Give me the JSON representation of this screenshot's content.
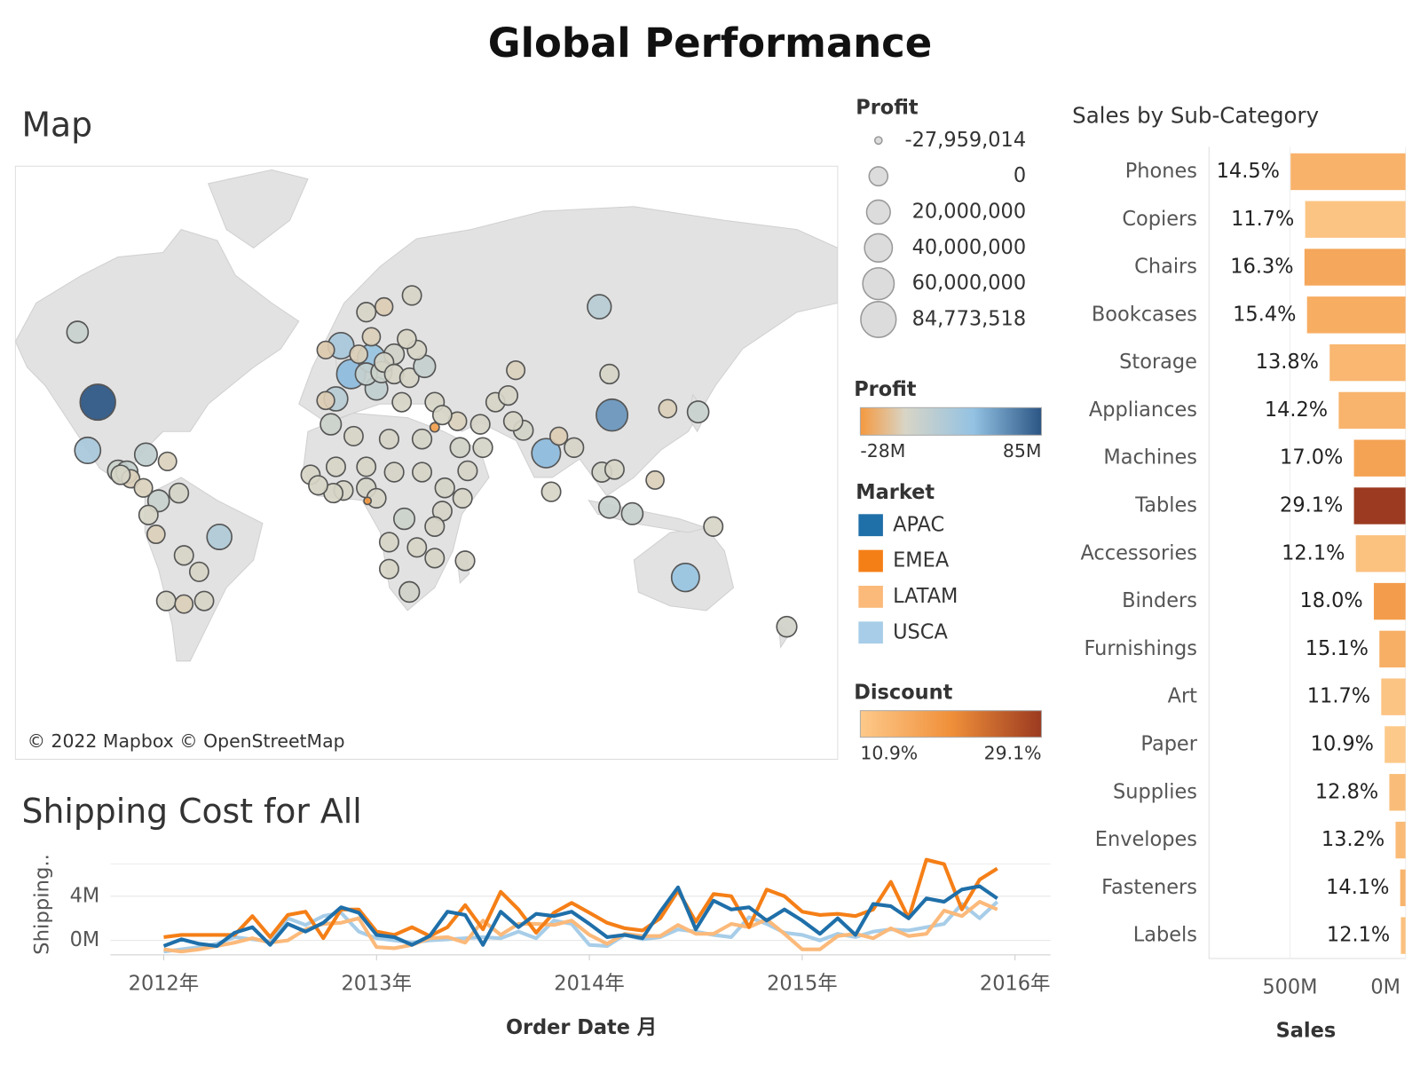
{
  "title": "Global Performance",
  "chart_data": [
    {
      "type": "map",
      "title": "Map",
      "attribution": "© 2022 Mapbox © OpenStreetMap",
      "lon": [
        -98,
        -106,
        -102,
        -90,
        -86.5,
        -85,
        -79,
        -70.5,
        -66,
        -74,
        -78,
        -75,
        -64,
        -50,
        -58,
        -71,
        -64,
        -56,
        -80,
        -89,
        -2,
        2,
        10,
        -4,
        12,
        -8,
        5,
        8,
        14,
        19,
        15,
        8,
        26,
        10,
        15,
        19,
        25,
        31,
        100,
        28,
        24,
        22,
        35,
        -8,
        -6,
        3,
        17,
        30,
        45,
        53,
        44,
        38,
        70,
        66,
        67,
        59,
        64,
        48,
        54,
        -14,
        -4,
        8,
        19,
        30,
        39,
        46,
        38,
        8,
        -1,
        -5,
        12,
        23,
        35,
        17,
        28,
        35,
        17,
        25,
        47,
        -11,
        8.5,
        35,
        105,
        79,
        139,
        127,
        122,
        101,
        106,
        90,
        81,
        104,
        113,
        145,
        134,
        174,
        104,
        84
      ],
      "lat": [
        39,
        57,
        23,
        15.5,
        15,
        12.5,
        21.5,
        19,
        7,
        4,
        -1.5,
        -9,
        -17,
        -10,
        -23,
        -33,
        -34,
        -33,
        9,
        14,
        54,
        47,
        51,
        40,
        43,
        53,
        52,
        47,
        47.5,
        52,
        62,
        61,
        64,
        56,
        50,
        47,
        46,
        49,
        62,
        53,
        55.5,
        39,
        39,
        39.5,
        32,
        28,
        27,
        27,
        24,
        32,
        33,
        35,
        30,
        33,
        48,
        39,
        41,
        15.5,
        24,
        14,
        17,
        17,
        15,
        15,
        9,
        5,
        0,
        9,
        8,
        7,
        5,
        -3,
        -6,
        -12,
        -14,
        -18,
        -22,
        -30,
        -19,
        10,
        4,
        31,
        35,
        22,
        36,
        37,
        12,
        15,
        16,
        24,
        7.5,
        1.5,
        -1,
        -6,
        -25,
        -41,
        47,
        28
      ],
      "profit": [
        84773518,
        10000000,
        30000000,
        8000000,
        12000000,
        -3000000,
        15000000,
        -2000000,
        2000000,
        10000000,
        1000000,
        -3000000,
        1000000,
        25000000,
        500000,
        1000000,
        -3000000,
        500000,
        -2000000,
        1000000,
        30000000,
        45000000,
        40000000,
        20000000,
        15000000,
        -5000000,
        -3000000,
        12000000,
        8000000,
        5000000,
        -4000000,
        1000000,
        1000000,
        -3000000,
        2000000,
        1000000,
        1000000,
        12000000,
        20000000,
        1000000,
        0,
        500000,
        1000000,
        -4000000,
        8000000,
        500000,
        1500000,
        2000000,
        3000000,
        1500000,
        -2000000,
        500000,
        3000000,
        500000,
        -2000000,
        500000,
        1000000,
        1500000,
        2000000,
        500000,
        1000000,
        500000,
        1500000,
        1000000,
        2000000,
        1000000,
        1500000,
        2000000,
        1000000,
        500000,
        1000000,
        8000000,
        1500000,
        1000000,
        500000,
        1000000,
        500000,
        5000000,
        1500000,
        500000,
        -27959014,
        -25000000,
        60000000,
        45000000,
        10000000,
        -3000000,
        -3000000,
        3000000,
        1000000,
        1500000,
        1000000,
        10000000,
        10000000,
        1000000,
        40000000,
        5000000,
        1000000,
        -4000000
      ],
      "size_legend": {
        "title": "Profit",
        "ticks": [
          {
            "value": -27959014,
            "label": "-27,959,014"
          },
          0,
          {
            "value": 20000000,
            "label": "20,000,000"
          },
          {
            "value": 40000000,
            "label": "40,000,000"
          },
          {
            "value": 60000000,
            "label": "60,000,000"
          },
          {
            "value": 84773518,
            "label": "84,773,518"
          }
        ]
      },
      "color_legend": {
        "title": "Profit",
        "ticks": [
          {
            "value": -27959014,
            "label": "-28M"
          },
          {
            "value": 84773518,
            "label": "85M"
          }
        ],
        "colors": [
          "#f5993f",
          "#d8d5c6",
          "#93c2e3",
          "#2b5584"
        ]
      }
    },
    {
      "type": "line",
      "title": "Shipping Cost for All",
      "y_label": "Shipping..",
      "x_label": "Order Date 月",
      "legend_title": "Market",
      "x": [
        "2012-01",
        "2012-02",
        "2012-03",
        "2012-04",
        "2012-05",
        "2012-06",
        "2012-07",
        "2012-08",
        "2012-09",
        "2012-10",
        "2012-11",
        "2012-12",
        "2013-01",
        "2013-02",
        "2013-03",
        "2013-04",
        "2013-05",
        "2013-06",
        "2013-07",
        "2013-08",
        "2013-09",
        "2013-10",
        "2013-11",
        "2013-12",
        "2014-01",
        "2014-02",
        "2014-03",
        "2014-04",
        "2014-05",
        "2014-06",
        "2014-07",
        "2014-08",
        "2014-09",
        "2014-10",
        "2014-11",
        "2014-12",
        "2015-01",
        "2015-02",
        "2015-03",
        "2015-04",
        "2015-05",
        "2015-06",
        "2015-07",
        "2015-08",
        "2015-09",
        "2015-10",
        "2015-11",
        "2015-12"
      ],
      "xlim": [
        "2011-10",
        "2016-03"
      ],
      "xticks": [
        {
          "value": "2012-01",
          "label": "2012年"
        },
        {
          "value": "2013-01",
          "label": "2013年"
        },
        {
          "value": "2014-01",
          "label": "2014年"
        },
        {
          "value": "2015-01",
          "label": "2015年"
        },
        {
          "value": "2016-01",
          "label": "2016年"
        }
      ],
      "ylim": [
        -1300000,
        7000000
      ],
      "yticks": [
        {
          "value": 0,
          "label": "0M"
        },
        {
          "value": 4000000,
          "label": "4M"
        }
      ],
      "grid": true,
      "series": [
        {
          "name": "APAC",
          "color": "#1f6fa9",
          "values": [
            -500000,
            100000,
            -300000,
            -500000,
            700000,
            1200000,
            -400000,
            1500000,
            800000,
            1600000,
            3000000,
            2500000,
            500000,
            300000,
            -400000,
            400000,
            2600000,
            2300000,
            -400000,
            2600000,
            1200000,
            2400000,
            2200000,
            2600000,
            1500000,
            300000,
            500000,
            200000,
            2600000,
            4800000,
            1000000,
            3600000,
            2800000,
            3000000,
            1800000,
            2800000,
            1800000,
            600000,
            2000000,
            500000,
            3300000,
            3100000,
            2000000,
            3800000,
            3500000,
            4600000,
            4900000,
            3800000
          ]
        },
        {
          "name": "EMEA",
          "color": "#f57f17",
          "values": [
            300000,
            500000,
            500000,
            500000,
            500000,
            2200000,
            300000,
            2300000,
            2600000,
            200000,
            2800000,
            2800000,
            800000,
            500000,
            1200000,
            400000,
            1200000,
            3200000,
            1000000,
            4400000,
            2800000,
            700000,
            2500000,
            3400000,
            2500000,
            1600000,
            1100000,
            900000,
            2000000,
            4500000,
            1700000,
            4200000,
            4000000,
            1200000,
            4600000,
            4000000,
            2600000,
            2300000,
            2400000,
            2200000,
            2800000,
            5300000,
            2000000,
            7300000,
            6900000,
            2800000,
            5500000,
            6500000
          ]
        },
        {
          "name": "LATAM",
          "color": "#fbb97a",
          "values": [
            -800000,
            -1000000,
            -800000,
            -500000,
            -200000,
            200000,
            -200000,
            0,
            1000000,
            1500000,
            1600000,
            2000000,
            -600000,
            -700000,
            -400000,
            200000,
            300000,
            -200000,
            1800000,
            500000,
            1500000,
            1500000,
            1400000,
            1800000,
            500000,
            -300000,
            600000,
            400000,
            400000,
            1400000,
            600000,
            600000,
            1500000,
            1200000,
            1900000,
            600000,
            -800000,
            -800000,
            400000,
            600000,
            200000,
            1100000,
            400000,
            600000,
            2700000,
            2200000,
            3500000,
            2800000
          ]
        },
        {
          "name": "USCA",
          "color": "#a7cde8",
          "values": [
            -1000000,
            -800000,
            -600000,
            -300000,
            300000,
            100000,
            -100000,
            2000000,
            1400000,
            2200000,
            2500000,
            800000,
            200000,
            0,
            -200000,
            0,
            100000,
            200000,
            300000,
            200000,
            800000,
            200000,
            1800000,
            1500000,
            -400000,
            -500000,
            500000,
            100000,
            300000,
            1000000,
            800000,
            500000,
            300000,
            2100000,
            1500000,
            700000,
            500000,
            0,
            600000,
            300000,
            800000,
            1000000,
            900000,
            1200000,
            1500000,
            3300000,
            2000000,
            3500000
          ]
        }
      ]
    },
    {
      "type": "bar",
      "orientation": "horizontal",
      "title": "Sales by Sub-Category",
      "x_label": "Sales",
      "categories": [
        "Phones",
        "Copiers",
        "Chairs",
        "Bookcases",
        "Storage",
        "Appliances",
        "Machines",
        "Tables",
        "Accessories",
        "Binders",
        "Furnishings",
        "Art",
        "Paper",
        "Supplies",
        "Envelopes",
        "Fasteners",
        "Labels"
      ],
      "values": [
        497000000,
        434000000,
        437000000,
        426000000,
        328000000,
        289000000,
        223000000,
        223000000,
        215000000,
        137000000,
        113000000,
        105000000,
        90000000,
        70000000,
        43000000,
        23000000,
        20000000
      ],
      "discount": [
        14.5,
        11.7,
        16.3,
        15.4,
        13.8,
        14.2,
        17.0,
        29.1,
        12.1,
        18.0,
        15.1,
        11.7,
        10.9,
        12.8,
        13.2,
        14.1,
        12.1
      ],
      "discount_labels": [
        "14.5%",
        "11.7%",
        "16.3%",
        "15.4%",
        "13.8%",
        "14.2%",
        "17.0%",
        "29.1%",
        "12.1%",
        "18.0%",
        "15.1%",
        "11.7%",
        "10.9%",
        "12.8%",
        "13.2%",
        "14.1%",
        "12.1%"
      ],
      "xlim": [
        0,
        850000000
      ],
      "x_reversed": true,
      "grid": true,
      "xticks": [
        {
          "value": 500000000,
          "label": "500M"
        },
        {
          "value": 0,
          "label": "0M"
        }
      ],
      "color_legend": {
        "title": "Discount",
        "ticks": [
          {
            "value": 10.9,
            "label": "10.9%"
          },
          {
            "value": 29.1,
            "label": "29.1%"
          }
        ],
        "colors": [
          "#fdc98a",
          "#f0903a",
          "#9b3a20"
        ]
      }
    }
  ]
}
